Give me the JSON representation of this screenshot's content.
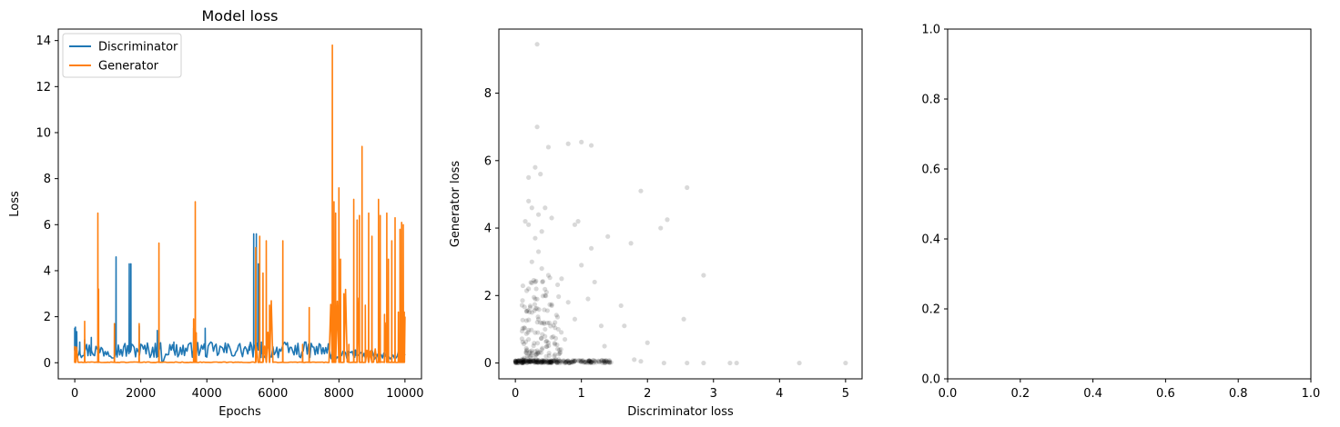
{
  "chart_data": [
    {
      "type": "line",
      "title": "Model loss",
      "xlabel": "Epochs",
      "ylabel": "Loss",
      "xlim": [
        -500,
        10500
      ],
      "ylim": [
        -0.7,
        14.5
      ],
      "xticks": [
        0,
        2000,
        4000,
        6000,
        8000,
        10000
      ],
      "yticks": [
        0,
        2,
        4,
        6,
        8,
        10,
        12,
        14
      ],
      "grid": false,
      "legend_position": "top-left",
      "series": [
        {
          "name": "Discriminator",
          "color": "#1f77b4",
          "baseline": {
            "start": 0,
            "end": 10000,
            "step": 40,
            "base": 0.55,
            "noise": 0.35
          },
          "spikes": [
            [
              0,
              1.5
            ],
            [
              20,
              1.55
            ],
            [
              60,
              1.35
            ],
            [
              150,
              0.9
            ],
            [
              300,
              1.0
            ],
            [
              500,
              1.1
            ],
            [
              1250,
              4.6
            ],
            [
              1650,
              4.3
            ],
            [
              1700,
              4.3
            ],
            [
              1950,
              1.6
            ],
            [
              2500,
              1.4
            ],
            [
              3000,
              0.9
            ],
            [
              3600,
              1.5
            ],
            [
              3950,
              1.5
            ],
            [
              5300,
              0.8
            ],
            [
              5420,
              5.6
            ],
            [
              5500,
              5.6
            ],
            [
              5560,
              4.3
            ],
            [
              5650,
              0.9
            ],
            [
              7800,
              0.4
            ],
            [
              8500,
              0.5
            ],
            [
              9000,
              0.4
            ],
            [
              9900,
              0.4
            ]
          ]
        },
        {
          "name": "Generator",
          "color": "#ff7f0e",
          "baseline": {
            "start": 0,
            "end": 10000,
            "step": 50,
            "base": 0.02,
            "noise": 0.03
          },
          "spikes": [
            [
              0,
              0.7
            ],
            [
              30,
              0.4
            ],
            [
              300,
              1.8
            ],
            [
              700,
              6.5
            ],
            [
              720,
              3.2
            ],
            [
              1200,
              1.7
            ],
            [
              1950,
              1.7
            ],
            [
              2550,
              5.2
            ],
            [
              3600,
              1.9
            ],
            [
              3650,
              7.0
            ],
            [
              3680,
              1.3
            ],
            [
              5480,
              5.0
            ],
            [
              5600,
              5.5
            ],
            [
              5700,
              3.9
            ],
            [
              5800,
              5.3
            ],
            [
              5900,
              2.5
            ],
            [
              6300,
              5.3
            ],
            [
              6900,
              0.8
            ],
            [
              7100,
              2.4
            ],
            [
              7800,
              13.8
            ],
            [
              7850,
              7.0
            ],
            [
              7900,
              6.5
            ],
            [
              8000,
              7.6
            ],
            [
              8050,
              4.5
            ],
            [
              8150,
              3.0
            ],
            [
              8300,
              0.8
            ],
            [
              8450,
              7.1
            ],
            [
              8550,
              6.2
            ],
            [
              8620,
              6.4
            ],
            [
              8700,
              9.4
            ],
            [
              8800,
              2.5
            ],
            [
              8900,
              6.5
            ],
            [
              9000,
              5.5
            ],
            [
              9200,
              7.1
            ],
            [
              9250,
              6.4
            ],
            [
              9380,
              2.1
            ],
            [
              9450,
              6.5
            ],
            [
              9500,
              4.5
            ],
            [
              9600,
              5.3
            ],
            [
              9700,
              6.3
            ],
            [
              9800,
              2.2
            ],
            [
              9850,
              5.8
            ],
            [
              9900,
              6.1
            ],
            [
              9950,
              6.0
            ],
            [
              9980,
              2.2
            ]
          ]
        }
      ]
    },
    {
      "type": "scatter",
      "xlabel": "Discriminator loss",
      "ylabel": "Generator loss",
      "xlim": [
        -0.25,
        5.25
      ],
      "ylim": [
        -0.47,
        9.9
      ],
      "xticks": [
        0,
        1,
        2,
        3,
        4,
        5
      ],
      "yticks": [
        0,
        2,
        4,
        6,
        8
      ],
      "grid": false,
      "point_color": "#000000",
      "point_opacity": 0.15,
      "points": [
        [
          0.33,
          9.45
        ],
        [
          0.33,
          7.0
        ],
        [
          0.5,
          6.4
        ],
        [
          0.3,
          5.8
        ],
        [
          0.38,
          5.6
        ],
        [
          0.2,
          5.5
        ],
        [
          0.2,
          4.8
        ],
        [
          0.25,
          4.6
        ],
        [
          0.15,
          4.2
        ],
        [
          0.2,
          4.1
        ],
        [
          0.35,
          4.4
        ],
        [
          0.45,
          4.6
        ],
        [
          0.55,
          4.3
        ],
        [
          0.4,
          3.9
        ],
        [
          0.3,
          3.7
        ],
        [
          0.35,
          3.3
        ],
        [
          0.25,
          3.0
        ],
        [
          0.4,
          2.8
        ],
        [
          0.5,
          2.6
        ],
        [
          0.3,
          2.4
        ],
        [
          0.2,
          2.2
        ],
        [
          0.45,
          2.0
        ],
        [
          0.3,
          1.9
        ],
        [
          0.55,
          1.7
        ],
        [
          0.25,
          1.5
        ],
        [
          0.35,
          1.3
        ],
        [
          0.6,
          1.2
        ],
        [
          0.45,
          1.0
        ],
        [
          0.3,
          0.9
        ],
        [
          0.2,
          0.7
        ],
        [
          0.5,
          0.6
        ],
        [
          0.4,
          0.4
        ],
        [
          0.25,
          0.3
        ],
        [
          0.6,
          0.25
        ],
        [
          0.8,
          6.5
        ],
        [
          1.0,
          6.55
        ],
        [
          1.15,
          6.45
        ],
        [
          0.9,
          4.1
        ],
        [
          0.95,
          4.2
        ],
        [
          1.15,
          3.4
        ],
        [
          1.4,
          3.75
        ],
        [
          1.75,
          3.55
        ],
        [
          1.9,
          5.1
        ],
        [
          2.2,
          4.0
        ],
        [
          2.3,
          4.25
        ],
        [
          2.6,
          5.2
        ],
        [
          2.85,
          2.6
        ],
        [
          2.55,
          1.3
        ],
        [
          1.6,
          1.7
        ],
        [
          1.65,
          1.1
        ],
        [
          1.2,
          2.4
        ],
        [
          1.0,
          2.9
        ],
        [
          0.7,
          2.5
        ],
        [
          0.8,
          1.8
        ],
        [
          0.9,
          1.3
        ],
        [
          1.1,
          1.9
        ],
        [
          1.3,
          1.1
        ],
        [
          1.35,
          0.5
        ],
        [
          0.75,
          0.7
        ],
        [
          0.65,
          1.0
        ],
        [
          1.8,
          0.1
        ],
        [
          1.9,
          0.05
        ],
        [
          2.0,
          0.6
        ],
        [
          2.25,
          0.0
        ],
        [
          2.6,
          0.0
        ],
        [
          2.85,
          0.0
        ],
        [
          3.25,
          0.0
        ],
        [
          3.35,
          0.0
        ],
        [
          4.3,
          0.0
        ],
        [
          5.0,
          0.0
        ]
      ],
      "dense_band": {
        "x_range": [
          0.0,
          1.45
        ],
        "y_max": 0.08,
        "count": 220
      }
    },
    {
      "type": "line",
      "xlim": [
        0.0,
        1.0
      ],
      "ylim": [
        0.0,
        1.0
      ],
      "xticks": [
        0.0,
        0.2,
        0.4,
        0.6,
        0.8,
        1.0
      ],
      "yticks": [
        0.0,
        0.2,
        0.4,
        0.6,
        0.8,
        1.0
      ],
      "xtick_labels": [
        "0.0",
        "0.2",
        "0.4",
        "0.6",
        "0.8",
        "1.0"
      ],
      "ytick_labels": [
        "0.0",
        "0.2",
        "0.4",
        "0.6",
        "0.8",
        "1.0"
      ],
      "grid": false,
      "series": []
    }
  ]
}
